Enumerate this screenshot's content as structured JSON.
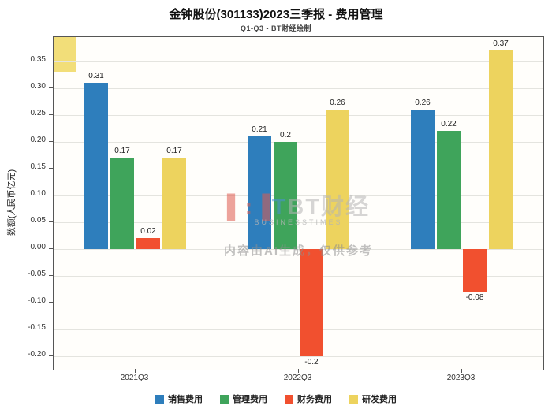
{
  "title": "金钟股份(301133)2023三季报 - 费用管理",
  "subtitle": "Q1-Q3 - BT财经绘制",
  "watermark": {
    "logo_left": "▌:▐",
    "logo_mid": "T",
    "logo_text": "BT财经",
    "sub": "BUSINESSTIMES",
    "ai_notice": "内容由AI生成，仅供参考"
  },
  "chart_data": {
    "type": "bar",
    "categories": [
      "2021Q3",
      "2022Q3",
      "2023Q3"
    ],
    "series": [
      {
        "name": "销售费用",
        "color": "#2e7ebc",
        "values": [
          0.31,
          0.21,
          0.26
        ]
      },
      {
        "name": "管理费用",
        "color": "#3fa45b",
        "values": [
          0.17,
          0.2,
          0.22
        ]
      },
      {
        "name": "财务费用",
        "color": "#f1502f",
        "values": [
          0.02,
          -0.2,
          -0.08
        ]
      },
      {
        "name": "研发费用",
        "color": "#edd35e",
        "values": [
          0.17,
          0.26,
          0.37
        ]
      }
    ],
    "title": "金钟股份(301133)2023三季报 - 费用管理",
    "xlabel": "",
    "ylabel": "数额(人民币亿元)",
    "ylim": [
      -0.225,
      0.395
    ],
    "yticks": [
      -0.2,
      -0.15,
      -0.1,
      -0.05,
      0.0,
      0.05,
      0.1,
      0.15,
      0.2,
      0.25,
      0.3,
      0.35
    ],
    "grid": true,
    "legend_position": "bottom"
  }
}
